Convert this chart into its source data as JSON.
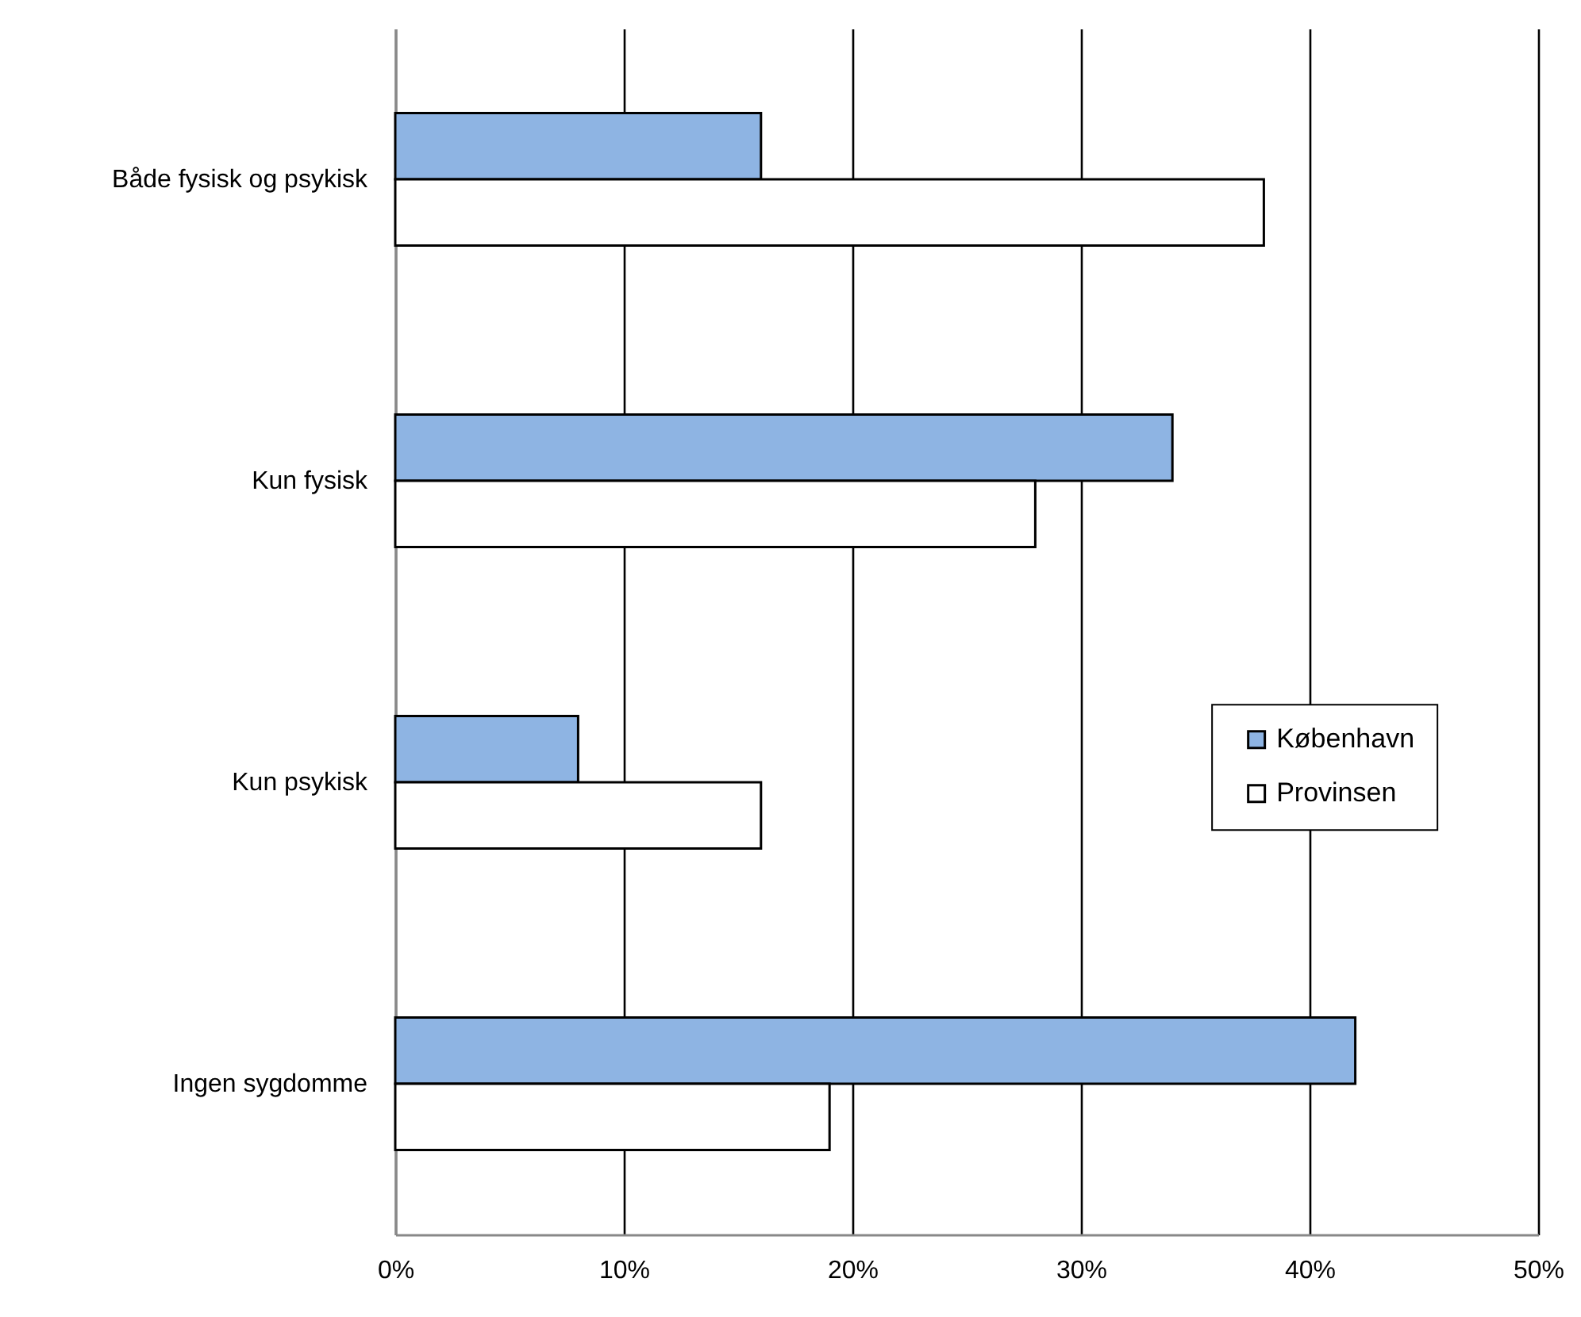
{
  "chart_data": {
    "type": "bar",
    "orientation": "horizontal",
    "categories": [
      "Både fysisk og psykisk",
      "Kun fysisk",
      "Kun psykisk",
      "Ingen sygdomme"
    ],
    "series": [
      {
        "name": "København",
        "color": "#8eb4e3",
        "values": [
          16,
          34,
          8,
          42
        ]
      },
      {
        "name": "Provinsen",
        "color": "#ffffff",
        "values": [
          38,
          28,
          16,
          19
        ]
      }
    ],
    "xlim": [
      0,
      50
    ],
    "xticks": [
      {
        "value": 0,
        "label": "0%"
      },
      {
        "value": 10,
        "label": "10%"
      },
      {
        "value": 20,
        "label": "20%"
      },
      {
        "value": 30,
        "label": "30%"
      },
      {
        "value": 40,
        "label": "40%"
      },
      {
        "value": 50,
        "label": "50%"
      }
    ],
    "grid": "x",
    "legend": "right"
  }
}
